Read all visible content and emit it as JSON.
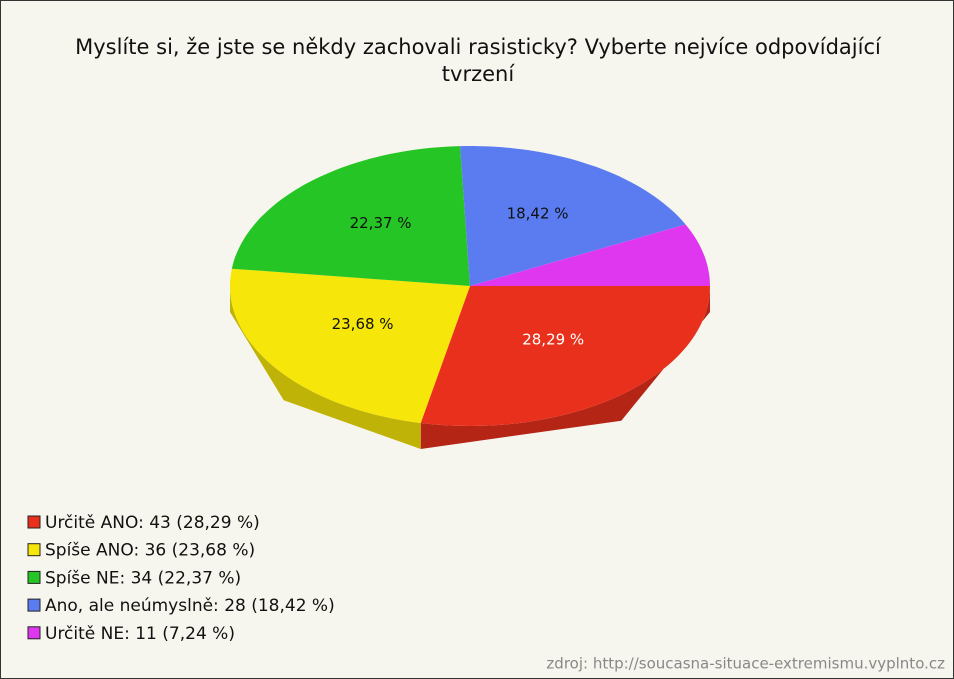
{
  "chart_data": {
    "type": "pie",
    "title": "Myslíte si, že jste se někdy zachovali rasisticky? Vyberte nejvíce odpovídající tvrzení",
    "categories": [
      "Určitě ANO: 43 (28,29 %)",
      "Spíše ANO: 36 (23,68 %)",
      "Spíše NE: 34 (22,37 %)",
      "Ano, ale neúmyslně: 28 (18,42 %)",
      "Určitě NE: 11 (7,24 %)"
    ],
    "values": [
      28.29,
      23.68,
      22.37,
      18.42,
      7.24
    ],
    "value_labels": [
      "28,29 %",
      "23,68 %",
      "22,37 %",
      "18,42 %",
      null
    ],
    "colors": [
      "#e8301c",
      "#f6e60a",
      "#26c526",
      "#5a7cf0",
      "#df37ef"
    ],
    "legend": "bottom-left",
    "source": "zdroj: http://soucasna-situace-extremismu.vyplnto.cz"
  }
}
